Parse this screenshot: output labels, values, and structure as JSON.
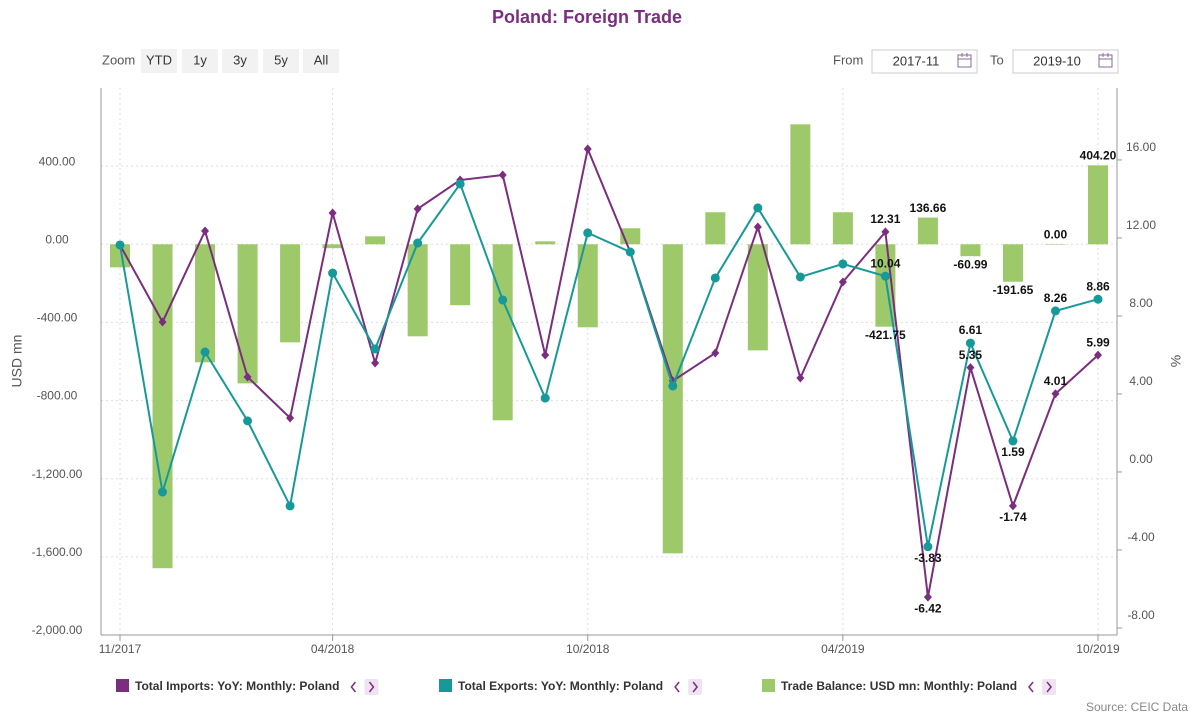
{
  "ui": {
    "zoom": "Zoom",
    "buttons": [
      "YTD",
      "1y",
      "3y",
      "5y",
      "All"
    ],
    "from": "From",
    "from_value": "2017-11",
    "to": "To",
    "to_value": "2019-10",
    "source": "Source: CEIC Data"
  },
  "chart_data": {
    "type": "combo",
    "title": "Poland: Foreign Trade",
    "y_label": "USD mn",
    "y2_label": "%",
    "grid": true,
    "categories": [
      "11/2017",
      null,
      null,
      null,
      null,
      "04/2018",
      null,
      null,
      null,
      null,
      null,
      "10/2018",
      null,
      null,
      null,
      null,
      null,
      "04/2019",
      null,
      null,
      null,
      null,
      null,
      "10/2019"
    ],
    "ylim": [
      -2000,
      800
    ],
    "yticks": [
      {
        "value": 400,
        "label": "400.00"
      },
      {
        "value": 0,
        "label": "0.00"
      },
      {
        "value": -400,
        "label": "-400.00"
      },
      {
        "value": -800,
        "label": "-800.00"
      },
      {
        "value": -1200,
        "label": "-1,200.00"
      },
      {
        "value": -1600,
        "label": "-1,600.00"
      },
      {
        "value": -2000,
        "label": "-2,000.00"
      }
    ],
    "y2lim": [
      -8.36,
      19.69
    ],
    "y2ticks": [
      {
        "value": 16,
        "label": "16.00"
      },
      {
        "value": 12,
        "label": "12.00"
      },
      {
        "value": 8,
        "label": "8.00"
      },
      {
        "value": 4,
        "label": "4.00"
      },
      {
        "value": 0,
        "label": "0.00"
      },
      {
        "value": -4,
        "label": "-4.00"
      },
      {
        "value": -8,
        "label": "-8.00"
      }
    ],
    "series": [
      {
        "name": "Trade Balance: USD mn: Monthly: Poland",
        "type": "bar",
        "color": "#9dc96a",
        "values": [
          -118,
          -1658,
          -604,
          -712,
          -502,
          -20,
          41,
          -471,
          -312,
          -901,
          15,
          -425,
          82,
          -1582,
          164,
          -543,
          614,
          164,
          -421.75,
          136.66,
          -60.99,
          -191.65,
          0,
          404.2
        ],
        "value_labels": [
          null,
          null,
          null,
          null,
          null,
          null,
          null,
          null,
          null,
          null,
          null,
          null,
          null,
          null,
          null,
          null,
          null,
          null,
          "-421.75",
          "136.66",
          "-60.99",
          "-191.65",
          "0.00",
          "404.20"
        ]
      },
      {
        "name": "Total Imports: YoY: Monthly: Poland",
        "type": "line",
        "marker": "diamond",
        "axis": "y2",
        "color": "#7b2d7f",
        "values": [
          11.64,
          7.69,
          12.36,
          4.87,
          2.77,
          13.28,
          5.59,
          13.49,
          14.97,
          15.23,
          6.0,
          16.56,
          11.28,
          4.67,
          6.1,
          12.56,
          4.82,
          9.74,
          12.31,
          -6.42,
          5.35,
          -1.74,
          4.01,
          5.99
        ],
        "value_labels": [
          null,
          null,
          null,
          null,
          null,
          null,
          null,
          null,
          null,
          null,
          null,
          null,
          null,
          null,
          null,
          null,
          null,
          null,
          "12.31",
          "-6.42",
          "5.35",
          "-1.74",
          "4.01",
          "5.99"
        ]
      },
      {
        "name": "Total Exports: YoY: Monthly: Poland",
        "type": "line",
        "marker": "circle",
        "axis": "y2",
        "color": "#17999a",
        "values": [
          11.64,
          -1.03,
          6.15,
          2.62,
          -1.74,
          10.2,
          6.31,
          11.74,
          14.77,
          8.82,
          3.79,
          12.26,
          11.28,
          4.41,
          9.95,
          13.54,
          10.0,
          10.67,
          10.04,
          -3.83,
          6.61,
          1.59,
          8.26,
          8.86
        ],
        "value_labels": [
          null,
          null,
          null,
          null,
          null,
          null,
          null,
          null,
          null,
          null,
          null,
          null,
          null,
          null,
          null,
          null,
          null,
          null,
          "10.04",
          "-3.83",
          "6.61",
          "1.59",
          "8.26",
          "8.86"
        ]
      }
    ]
  }
}
